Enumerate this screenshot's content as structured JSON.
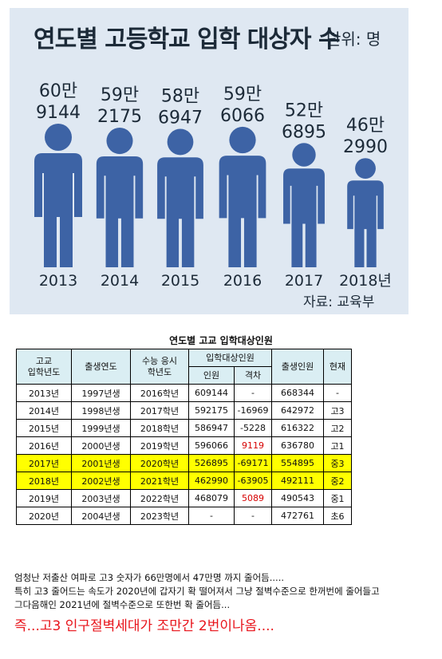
{
  "infographic": {
    "title": "연도별 고등학교 입학 대상자 수",
    "unit": "단위: 명",
    "source": "자료: 교육부",
    "figure_color": "#3d63a5"
  },
  "chart_data": {
    "type": "bar",
    "categories": [
      "2013",
      "2014",
      "2015",
      "2016",
      "2017",
      "2018년"
    ],
    "values": [
      609144,
      592175,
      586947,
      596066,
      526895,
      462990
    ],
    "value_labels": [
      [
        "60만",
        "9144"
      ],
      [
        "59만",
        "2175"
      ],
      [
        "58만",
        "6947"
      ],
      [
        "59만",
        "6066"
      ],
      [
        "52만",
        "6895"
      ],
      [
        "46만",
        "2990"
      ]
    ],
    "title": "연도별 고등학교 입학 대상자 수",
    "unit": "단위: 명",
    "xlabel": "",
    "ylabel": ""
  },
  "table": {
    "title": "연도별 고교 입학대상인원",
    "headers": {
      "col1": [
        "고교",
        "입학년도"
      ],
      "col2": "출생연도",
      "col3": [
        "수능 응시",
        "학년도"
      ],
      "group": "입학대상인원",
      "sub1": "인원",
      "sub2": "격차",
      "col6": "출생인원",
      "col7": "현재"
    },
    "rows": [
      {
        "year": "2013년",
        "birth": "1997년생",
        "exam": "2016학년",
        "count": "609144",
        "diff": "-",
        "births": "668344",
        "now": "-"
      },
      {
        "year": "2014년",
        "birth": "1998년생",
        "exam": "2017학년",
        "count": "592175",
        "diff": "-16969",
        "births": "642972",
        "now": "고3"
      },
      {
        "year": "2015년",
        "birth": "1999년생",
        "exam": "2018학년",
        "count": "586947",
        "diff": "-5228",
        "births": "616322",
        "now": "고2"
      },
      {
        "year": "2016년",
        "birth": "2000년생",
        "exam": "2019학년",
        "count": "596066",
        "diff": "9119",
        "births": "636780",
        "now": "고1"
      },
      {
        "year": "2017년",
        "birth": "2001년생",
        "exam": "2020학년",
        "count": "526895",
        "diff": "-69171",
        "births": "554895",
        "now": "중3"
      },
      {
        "year": "2018년",
        "birth": "2002년생",
        "exam": "2021학년",
        "count": "462990",
        "diff": "-63905",
        "births": "492111",
        "now": "중2"
      },
      {
        "year": "2019년",
        "birth": "2003년생",
        "exam": "2022학년",
        "count": "468079",
        "diff": "5089",
        "births": "490543",
        "now": "중1"
      },
      {
        "year": "2020년",
        "birth": "2004년생",
        "exam": "2023학년",
        "count": "-",
        "diff": "-",
        "births": "472761",
        "now": "초6"
      }
    ],
    "highlight_color": "#ffff00",
    "positive_diff_color": "#d60000"
  },
  "notes": {
    "line1": "엄청난 저출산 여파로 고3 숫자가 66만명에서 47만명 까지 줄어듬.....",
    "line2": "특히 고3 줄어드는 속도가 2020년에 갑자기 확 떨어져서 그냥 절벽수준으로 한꺼번에 줄어들고",
    "line3": "그다음해인 2021년에 절벽수준으로 또한번 확 줄어듬...",
    "emphasis": "즉...고3 인구절벽세대가 조만간 2번이나옴...."
  }
}
